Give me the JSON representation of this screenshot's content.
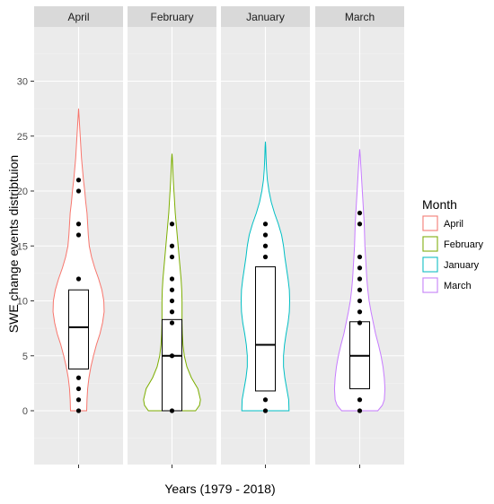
{
  "chart_data": {
    "type": "violin",
    "facet_by": "Month",
    "facets": [
      "April",
      "February",
      "January",
      "March"
    ],
    "xlabel": "Years (1979 - 2018)",
    "ylabel": "SWE change events distribtuion",
    "ylim": [
      -5,
      35
    ],
    "yticks": [
      0,
      5,
      10,
      15,
      20,
      25,
      30
    ],
    "grid": true,
    "legend": {
      "title": "Month",
      "position": "right",
      "entries": [
        {
          "label": "April",
          "color": "#F8766D"
        },
        {
          "label": "February",
          "color": "#7CAE00"
        },
        {
          "label": "January",
          "color": "#00BFC4"
        },
        {
          "label": "March",
          "color": "#C77CFF"
        }
      ]
    },
    "series": [
      {
        "name": "April",
        "color": "#F8766D",
        "points": [
          0,
          1,
          2,
          3,
          12,
          16,
          17,
          20,
          21
        ],
        "box": {
          "q1": 3.8,
          "median": 7.6,
          "q3": 11.0
        },
        "violin_range": [
          0,
          27.5
        ],
        "density": [
          [
            0,
            0.25
          ],
          [
            1,
            0.26
          ],
          [
            2,
            0.28
          ],
          [
            3,
            0.32
          ],
          [
            4,
            0.38
          ],
          [
            5,
            0.46
          ],
          [
            6,
            0.55
          ],
          [
            7,
            0.66
          ],
          [
            8,
            0.74
          ],
          [
            9,
            0.79
          ],
          [
            10,
            0.78
          ],
          [
            11,
            0.72
          ],
          [
            12,
            0.62
          ],
          [
            13,
            0.5
          ],
          [
            14,
            0.4
          ],
          [
            15,
            0.33
          ],
          [
            16,
            0.3
          ],
          [
            17,
            0.28
          ],
          [
            18,
            0.26
          ],
          [
            19,
            0.22
          ],
          [
            20,
            0.19
          ],
          [
            21,
            0.15
          ],
          [
            22,
            0.12
          ],
          [
            23,
            0.09
          ],
          [
            24,
            0.07
          ],
          [
            25,
            0.05
          ],
          [
            26,
            0.03
          ],
          [
            27,
            0.01
          ],
          [
            27.5,
            0
          ]
        ]
      },
      {
        "name": "February",
        "color": "#7CAE00",
        "points": [
          0,
          5,
          8,
          9,
          10,
          11,
          12,
          14,
          15,
          17
        ],
        "box": {
          "q1": 0,
          "median": 5,
          "q3": 8.3
        },
        "violin_range": [
          0,
          23.4
        ],
        "density": [
          [
            0,
            0.73
          ],
          [
            0.5,
            0.85
          ],
          [
            1,
            0.88
          ],
          [
            2,
            0.8
          ],
          [
            3,
            0.6
          ],
          [
            4,
            0.46
          ],
          [
            5,
            0.38
          ],
          [
            6,
            0.34
          ],
          [
            7,
            0.32
          ],
          [
            8,
            0.31
          ],
          [
            9,
            0.31
          ],
          [
            10,
            0.31
          ],
          [
            11,
            0.3
          ],
          [
            12,
            0.28
          ],
          [
            13,
            0.25
          ],
          [
            14,
            0.22
          ],
          [
            15,
            0.19
          ],
          [
            16,
            0.16
          ],
          [
            17,
            0.13
          ],
          [
            18,
            0.1
          ],
          [
            19,
            0.08
          ],
          [
            20,
            0.06
          ],
          [
            21,
            0.04
          ],
          [
            22,
            0.025
          ],
          [
            23,
            0.01
          ],
          [
            23.4,
            0
          ]
        ]
      },
      {
        "name": "January",
        "color": "#00BFC4",
        "points": [
          0,
          1,
          14,
          15,
          16,
          17
        ],
        "box": {
          "q1": 1.8,
          "median": 6,
          "q3": 13.1
        },
        "violin_range": [
          0,
          24.5
        ],
        "density": [
          [
            0,
            0.73
          ],
          [
            1,
            0.72
          ],
          [
            2,
            0.66
          ],
          [
            3,
            0.6
          ],
          [
            4,
            0.56
          ],
          [
            5,
            0.56
          ],
          [
            6,
            0.59
          ],
          [
            7,
            0.64
          ],
          [
            8,
            0.7
          ],
          [
            9,
            0.74
          ],
          [
            10,
            0.75
          ],
          [
            11,
            0.74
          ],
          [
            12,
            0.7
          ],
          [
            13,
            0.65
          ],
          [
            14,
            0.6
          ],
          [
            15,
            0.56
          ],
          [
            16,
            0.5
          ],
          [
            17,
            0.4
          ],
          [
            18,
            0.28
          ],
          [
            19,
            0.18
          ],
          [
            20,
            0.11
          ],
          [
            21,
            0.06
          ],
          [
            22,
            0.035
          ],
          [
            23,
            0.02
          ],
          [
            24,
            0.01
          ],
          [
            24.5,
            0
          ]
        ]
      },
      {
        "name": "March",
        "color": "#C77CFF",
        "points": [
          0,
          1,
          8,
          9,
          10,
          11,
          12,
          13,
          14,
          17,
          18
        ],
        "box": {
          "q1": 2,
          "median": 5,
          "q3": 8.1
        },
        "violin_range": [
          0,
          23.8
        ],
        "density": [
          [
            0,
            0.56
          ],
          [
            0.5,
            0.7
          ],
          [
            1,
            0.76
          ],
          [
            2,
            0.78
          ],
          [
            3,
            0.76
          ],
          [
            4,
            0.72
          ],
          [
            5,
            0.66
          ],
          [
            6,
            0.58
          ],
          [
            7,
            0.49
          ],
          [
            8,
            0.42
          ],
          [
            9,
            0.35
          ],
          [
            10,
            0.29
          ],
          [
            11,
            0.25
          ],
          [
            12,
            0.22
          ],
          [
            13,
            0.2
          ],
          [
            14,
            0.18
          ],
          [
            15,
            0.16
          ],
          [
            16,
            0.15
          ],
          [
            17,
            0.14
          ],
          [
            18,
            0.12
          ],
          [
            19,
            0.1
          ],
          [
            20,
            0.08
          ],
          [
            21,
            0.06
          ],
          [
            22,
            0.04
          ],
          [
            23,
            0.02
          ],
          [
            23.8,
            0
          ]
        ]
      }
    ]
  }
}
